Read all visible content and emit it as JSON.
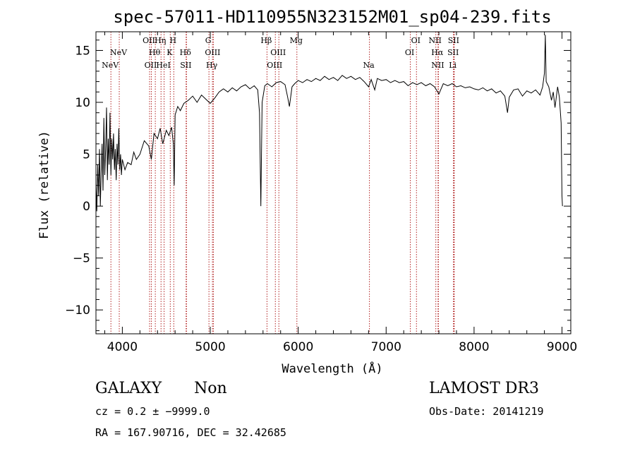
{
  "chart_data": {
    "type": "line",
    "title": "spec-57011-HD110955N323152M01_sp04-239.fits",
    "xlabel": "Wavelength (Å)",
    "ylabel": "Flux (relative)",
    "xlim": [
      3700,
      9100
    ],
    "ylim": [
      -12.3,
      16.8
    ],
    "x_ticks": [
      4000,
      5000,
      6000,
      7000,
      8000,
      9000
    ],
    "x_tick_labels": [
      "4000",
      "5000",
      "6000",
      "7000",
      "8000",
      "9000"
    ],
    "y_ticks": [
      -10,
      -5,
      0,
      5,
      10,
      15
    ],
    "y_tick_labels": [
      "−10",
      "−5",
      "0",
      "5",
      "10",
      "15"
    ],
    "series": [
      {
        "name": "spectrum",
        "points": [
          [
            3700,
            2.0
          ],
          [
            3710,
            -0.5
          ],
          [
            3720,
            4.0
          ],
          [
            3730,
            1.0
          ],
          [
            3740,
            5.5
          ],
          [
            3750,
            0.0
          ],
          [
            3760,
            3.5
          ],
          [
            3770,
            6.0
          ],
          [
            3780,
            1.5
          ],
          [
            3790,
            8.5
          ],
          [
            3800,
            3.0
          ],
          [
            3810,
            5.5
          ],
          [
            3820,
            9.5
          ],
          [
            3830,
            2.5
          ],
          [
            3840,
            6.5
          ],
          [
            3850,
            4.0
          ],
          [
            3860,
            9.0
          ],
          [
            3870,
            3.0
          ],
          [
            3880,
            6.5
          ],
          [
            3890,
            4.5
          ],
          [
            3900,
            7.0
          ],
          [
            3910,
            3.5
          ],
          [
            3920,
            5.5
          ],
          [
            3930,
            2.5
          ],
          [
            3940,
            6.0
          ],
          [
            3950,
            4.0
          ],
          [
            3960,
            7.5
          ],
          [
            3970,
            3.5
          ],
          [
            3980,
            5.0
          ],
          [
            3990,
            3.0
          ],
          [
            4000,
            4.5
          ],
          [
            4030,
            3.5
          ],
          [
            4060,
            4.2
          ],
          [
            4100,
            4.0
          ],
          [
            4130,
            5.2
          ],
          [
            4160,
            4.5
          ],
          [
            4200,
            5.0
          ],
          [
            4250,
            6.3
          ],
          [
            4300,
            5.8
          ],
          [
            4330,
            4.5
          ],
          [
            4360,
            7.0
          ],
          [
            4400,
            6.5
          ],
          [
            4430,
            7.5
          ],
          [
            4460,
            6.0
          ],
          [
            4500,
            7.3
          ],
          [
            4530,
            6.8
          ],
          [
            4560,
            7.6
          ],
          [
            4580,
            6.0
          ],
          [
            4590,
            2.0
          ],
          [
            4600,
            8.8
          ],
          [
            4630,
            9.6
          ],
          [
            4660,
            9.2
          ],
          [
            4700,
            9.9
          ],
          [
            4750,
            10.2
          ],
          [
            4800,
            10.6
          ],
          [
            4850,
            10.0
          ],
          [
            4900,
            10.7
          ],
          [
            4950,
            10.3
          ],
          [
            5000,
            9.9
          ],
          [
            5050,
            10.4
          ],
          [
            5100,
            11.0
          ],
          [
            5150,
            11.3
          ],
          [
            5200,
            11.0
          ],
          [
            5250,
            11.4
          ],
          [
            5300,
            11.1
          ],
          [
            5350,
            11.5
          ],
          [
            5400,
            11.7
          ],
          [
            5450,
            11.3
          ],
          [
            5500,
            11.6
          ],
          [
            5540,
            11.2
          ],
          [
            5560,
            9.0
          ],
          [
            5575,
            0.0
          ],
          [
            5590,
            10.0
          ],
          [
            5620,
            11.6
          ],
          [
            5650,
            11.8
          ],
          [
            5700,
            11.5
          ],
          [
            5750,
            11.9
          ],
          [
            5800,
            12.0
          ],
          [
            5850,
            11.7
          ],
          [
            5880,
            10.5
          ],
          [
            5900,
            9.6
          ],
          [
            5930,
            11.5
          ],
          [
            5960,
            11.8
          ],
          [
            6000,
            12.1
          ],
          [
            6050,
            11.9
          ],
          [
            6100,
            12.2
          ],
          [
            6150,
            12.0
          ],
          [
            6200,
            12.3
          ],
          [
            6250,
            12.1
          ],
          [
            6300,
            12.5
          ],
          [
            6350,
            12.2
          ],
          [
            6400,
            12.4
          ],
          [
            6450,
            12.1
          ],
          [
            6500,
            12.6
          ],
          [
            6550,
            12.3
          ],
          [
            6600,
            12.5
          ],
          [
            6650,
            12.2
          ],
          [
            6700,
            12.4
          ],
          [
            6750,
            12.0
          ],
          [
            6800,
            11.5
          ],
          [
            6830,
            12.2
          ],
          [
            6870,
            11.2
          ],
          [
            6900,
            12.3
          ],
          [
            6950,
            12.1
          ],
          [
            7000,
            12.2
          ],
          [
            7050,
            11.9
          ],
          [
            7100,
            12.1
          ],
          [
            7150,
            11.9
          ],
          [
            7200,
            12.0
          ],
          [
            7250,
            11.6
          ],
          [
            7300,
            11.9
          ],
          [
            7350,
            11.7
          ],
          [
            7400,
            11.9
          ],
          [
            7450,
            11.6
          ],
          [
            7500,
            11.8
          ],
          [
            7550,
            11.5
          ],
          [
            7600,
            10.8
          ],
          [
            7620,
            11.2
          ],
          [
            7650,
            11.8
          ],
          [
            7700,
            11.6
          ],
          [
            7750,
            11.8
          ],
          [
            7800,
            11.5
          ],
          [
            7850,
            11.6
          ],
          [
            7900,
            11.4
          ],
          [
            7950,
            11.5
          ],
          [
            8000,
            11.3
          ],
          [
            8050,
            11.2
          ],
          [
            8100,
            11.4
          ],
          [
            8150,
            11.1
          ],
          [
            8200,
            11.3
          ],
          [
            8250,
            10.9
          ],
          [
            8300,
            11.1
          ],
          [
            8350,
            10.6
          ],
          [
            8380,
            9.0
          ],
          [
            8400,
            10.5
          ],
          [
            8450,
            11.2
          ],
          [
            8500,
            11.3
          ],
          [
            8550,
            10.6
          ],
          [
            8600,
            11.1
          ],
          [
            8650,
            10.9
          ],
          [
            8700,
            11.2
          ],
          [
            8750,
            10.7
          ],
          [
            8780,
            11.5
          ],
          [
            8800,
            12.8
          ],
          [
            8810,
            16.5
          ],
          [
            8820,
            12.0
          ],
          [
            8850,
            11.5
          ],
          [
            8880,
            10.2
          ],
          [
            8900,
            11.0
          ],
          [
            8920,
            9.5
          ],
          [
            8950,
            11.5
          ],
          [
            8970,
            10.5
          ],
          [
            8990,
            8.0
          ],
          [
            9000,
            1.0
          ],
          [
            9005,
            0.0
          ]
        ]
      }
    ],
    "lines": [
      {
        "name": "NeV",
        "x": 3870,
        "row": 3
      },
      {
        "name": "NeV",
        "x": 3965,
        "row": 2
      },
      {
        "name": "OII",
        "x": 4310,
        "row": 1
      },
      {
        "name": "OII",
        "x": 4330,
        "row": 3
      },
      {
        "name": "Hθ",
        "x": 4375,
        "row": 2
      },
      {
        "name": "Hη",
        "x": 4440,
        "row": 1
      },
      {
        "name": "HeI",
        "x": 4475,
        "row": 3
      },
      {
        "name": "K",
        "x": 4545,
        "row": 2
      },
      {
        "name": "H",
        "x": 4585,
        "row": 1
      },
      {
        "name": "Hδ",
        "x": 4725,
        "row": 2
      },
      {
        "name": "SII",
        "x": 4730,
        "row": 3
      },
      {
        "name": "G",
        "x": 4985,
        "row": 1
      },
      {
        "name": "OIII",
        "x": 5035,
        "row": 2
      },
      {
        "name": "Hγ",
        "x": 5025,
        "row": 3
      },
      {
        "name": "Hβ",
        "x": 5645,
        "row": 1
      },
      {
        "name": "OIII",
        "x": 5780,
        "row": 2
      },
      {
        "name": "OIII",
        "x": 5740,
        "row": 3
      },
      {
        "name": "Mg",
        "x": 5985,
        "row": 1
      },
      {
        "name": "Na",
        "x": 6810,
        "row": 3
      },
      {
        "name": "OI",
        "x": 7345,
        "row": 1
      },
      {
        "name": "OI",
        "x": 7275,
        "row": 2
      },
      {
        "name": "NII",
        "x": 7565,
        "row": 1
      },
      {
        "name": "Hα",
        "x": 7590,
        "row": 2
      },
      {
        "name": "NII",
        "x": 7595,
        "row": 3
      },
      {
        "name": "SII",
        "x": 7775,
        "row": 1
      },
      {
        "name": "SII",
        "x": 7770,
        "row": 2
      },
      {
        "name": "Li",
        "x": 7765,
        "row": 3
      }
    ]
  },
  "info": {
    "class": "GALAXY",
    "subclass": "Non",
    "survey": "LAMOST DR3",
    "cz": "cz = 0.2 ± −9999.0",
    "obs_date": "Obs-Date: 20141219",
    "coords": "RA = 167.90716, DEC =  32.42685"
  },
  "colors": {
    "line_marker": "#b22222",
    "spectrum": "#000000"
  }
}
